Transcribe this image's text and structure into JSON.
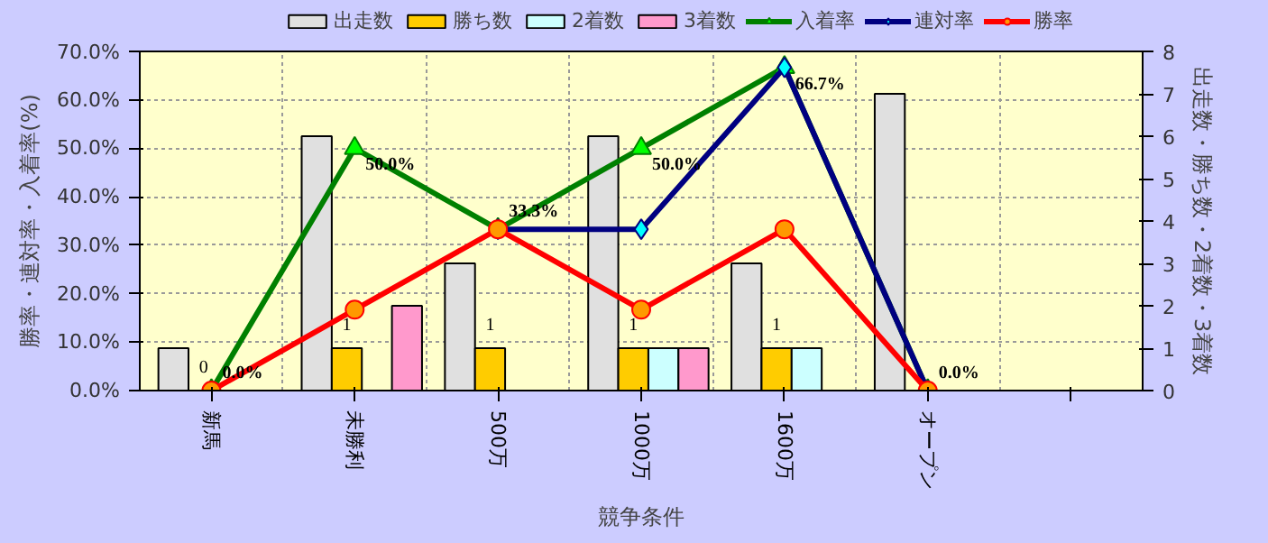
{
  "chart_data": {
    "type": "bar",
    "xlabel": "競争条件",
    "ylabel": "勝率・連対率・入着率(%)",
    "y2label": "出走数・勝ち数・2着数・3着数",
    "categories": [
      "新馬",
      "未勝利",
      "500万",
      "1000万",
      "1600万",
      "オープン",
      null
    ],
    "series": [
      {
        "name": "出走数",
        "axis": "y2",
        "color": "#e0e0e0",
        "values": [
          1,
          6,
          3,
          6,
          3,
          7,
          null
        ]
      },
      {
        "name": "勝ち数",
        "axis": "y2",
        "color": "#ffcc00",
        "values": [
          0,
          1,
          1,
          1,
          1,
          0,
          null
        ],
        "value_labels": [
          "0",
          "1",
          "1",
          "1",
          "1",
          null,
          null
        ]
      },
      {
        "name": "2着数",
        "axis": "y2",
        "color": "#ccffff",
        "values": [
          0,
          0,
          0,
          1,
          1,
          0,
          null
        ]
      },
      {
        "name": "3着数",
        "axis": "y2",
        "color": "#ff99cc",
        "values": [
          0,
          2,
          0,
          1,
          0,
          0,
          null
        ]
      },
      {
        "name": "入着率",
        "type": "line",
        "marker": "triangle",
        "color": "#008000",
        "values": [
          0,
          50,
          33.3,
          50,
          66.7,
          0,
          null
        ],
        "value_labels": [
          "0.0%",
          "50.0%",
          "33.3%",
          "50.0%",
          "66.7%",
          "0.0%",
          null
        ]
      },
      {
        "name": "連対率",
        "type": "line",
        "marker": "diamond",
        "color": "#000080",
        "values": [
          null,
          null,
          33.3,
          33.3,
          66.7,
          0,
          null
        ]
      },
      {
        "name": "勝率",
        "type": "line",
        "marker": "circle",
        "color": "#ff0000",
        "values": [
          0,
          16.7,
          33.3,
          16.7,
          33.3,
          0,
          null
        ]
      }
    ],
    "ylim": [
      0,
      70
    ],
    "yticks": [
      {
        "value": 0,
        "label": "0.0%"
      },
      {
        "value": 10,
        "label": "10.0%"
      },
      {
        "value": 20,
        "label": "20.0%"
      },
      {
        "value": 30,
        "label": "30.0%"
      },
      {
        "value": 40,
        "label": "40.0%"
      },
      {
        "value": 50,
        "label": "50.0%"
      },
      {
        "value": 60,
        "label": "60.0%"
      },
      {
        "value": 70,
        "label": "70.0%"
      }
    ],
    "y2lim": [
      0,
      8
    ],
    "y2ticks": [
      0,
      1,
      2,
      3,
      4,
      5,
      6,
      7,
      8
    ],
    "grid": true,
    "legend": "top"
  }
}
